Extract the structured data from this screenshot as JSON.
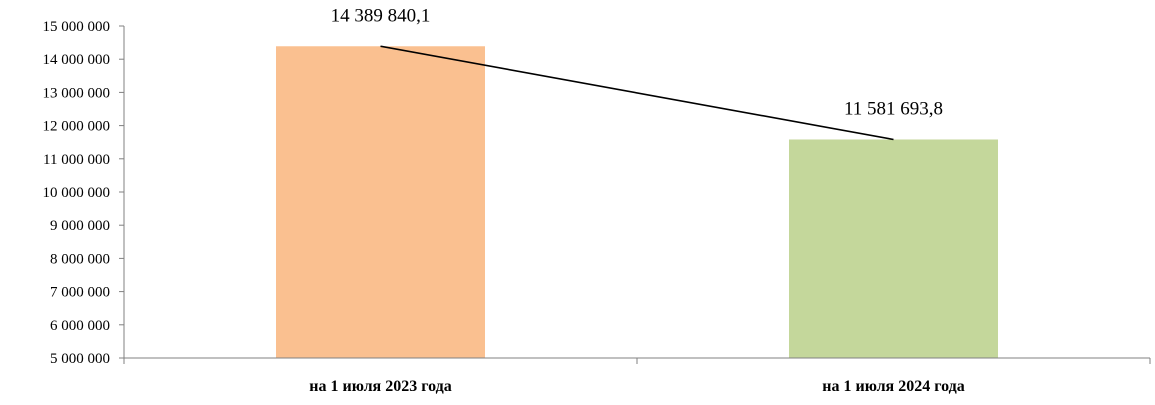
{
  "chart_data": {
    "type": "bar",
    "categories": [
      "на 1 июля 2023 года",
      "на 1 июля 2024 года"
    ],
    "values": [
      14389840.1,
      11581693.8
    ],
    "data_labels": [
      "14 389 840,1",
      "11 581 693,8"
    ],
    "bar_colors": [
      "#FAC090",
      "#C4D79B"
    ],
    "trend_line": true,
    "ylim": [
      5000000,
      15000000
    ],
    "y_ticks": [
      5000000,
      6000000,
      7000000,
      8000000,
      9000000,
      10000000,
      11000000,
      12000000,
      13000000,
      14000000,
      15000000
    ],
    "y_tick_labels": [
      "5 000 000",
      "6 000 000",
      "7 000 000",
      "8 000 000",
      "9 000 000",
      "10 000 000",
      "11 000 000",
      "12 000 000",
      "13 000 000",
      "14 000 000",
      "15 000 000"
    ],
    "grid": false,
    "legend": "none"
  }
}
